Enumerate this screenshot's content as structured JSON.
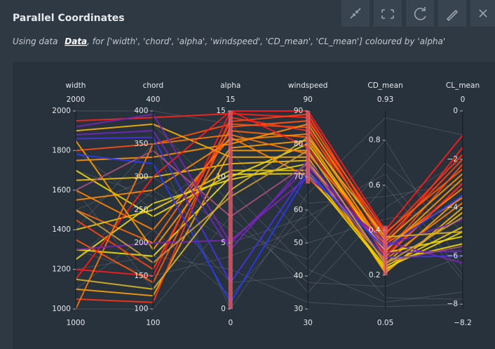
{
  "header": {
    "title": "Parallel Coordinates",
    "subtitle_prefix": "Using data",
    "subtitle_link": "Data",
    "subtitle_suffix": ", for ['width', 'chord', 'alpha', 'windspeed', 'CD_mean', 'CL_mean'] coloured by 'alpha'"
  },
  "chart_data": {
    "type": "parcoords",
    "color_dimension": 2,
    "colorscale": [
      [
        0,
        "#1e3cff"
      ],
      [
        0.4,
        "#8a20a8"
      ],
      [
        0.66,
        "#f0e000"
      ],
      [
        0.85,
        "#ff8c00"
      ],
      [
        1,
        "#ff1a1a"
      ]
    ],
    "filtered_color": "#6b7178",
    "dimensions": [
      {
        "label": "width",
        "range": [
          1000,
          2000
        ],
        "ticks": [
          1000,
          1200,
          1400,
          1600,
          1800,
          2000
        ]
      },
      {
        "label": "chord",
        "range": [
          100,
          400
        ],
        "ticks": [
          100,
          150,
          200,
          250,
          300,
          350,
          400
        ]
      },
      {
        "label": "alpha",
        "range": [
          0,
          15
        ],
        "ticks": [
          0,
          5,
          10,
          15
        ],
        "constraintrange": [
          0,
          15
        ]
      },
      {
        "label": "windspeed",
        "range": [
          30,
          90
        ],
        "ticks": [
          30,
          40,
          50,
          60,
          70,
          80,
          90
        ],
        "constraintrange": [
          68,
          90
        ]
      },
      {
        "label": "CD_mean",
        "range": [
          0.05,
          0.93
        ],
        "ticks": [
          0.2,
          0.4,
          0.6,
          0.8
        ],
        "constraintrange": [
          0.2,
          0.42
        ]
      },
      {
        "label": "CL_mean",
        "range": [
          {
            "value": -8.2,
            "label": "−8.2"
          },
          0
        ],
        "ticks": [
          0,
          {
            "value": -2,
            "label": "−2"
          },
          {
            "value": -4,
            "label": "−4"
          },
          {
            "value": -6,
            "label": "−6"
          },
          {
            "value": -8,
            "label": "−8"
          }
        ]
      }
    ],
    "lines": [
      [
        1950,
        390,
        14.8,
        88,
        0.33,
        -1.5
      ],
      [
        1800,
        350,
        14,
        85,
        0.3,
        -2.2
      ],
      [
        1500,
        200,
        13.5,
        82,
        0.28,
        -3.0
      ],
      [
        1200,
        150,
        15,
        90,
        0.4,
        -1.0
      ],
      [
        1100,
        120,
        12,
        78,
        0.25,
        -3.5
      ],
      [
        1650,
        300,
        11,
        75,
        0.22,
        -4.2
      ],
      [
        1400,
        250,
        10.5,
        72,
        0.24,
        -4.8
      ],
      [
        1300,
        180,
        10,
        80,
        0.3,
        -5.2
      ],
      [
        1750,
        330,
        12.5,
        86,
        0.35,
        -2.6
      ],
      [
        1050,
        110,
        14.5,
        84,
        0.38,
        -1.8
      ],
      [
        1600,
        220,
        13,
        70,
        0.27,
        -3.8
      ],
      [
        1900,
        380,
        11.5,
        76,
        0.21,
        -4.0
      ],
      [
        1250,
        260,
        9.8,
        74,
        0.26,
        -5.5
      ],
      [
        1450,
        160,
        14.2,
        89,
        0.36,
        -2.0
      ],
      [
        1550,
        280,
        12.8,
        83,
        0.32,
        -3.2
      ],
      [
        1350,
        140,
        13.8,
        87,
        0.39,
        -2.4
      ],
      [
        1700,
        240,
        10.2,
        71,
        0.23,
        -5.0
      ],
      [
        1150,
        300,
        15,
        79,
        0.29,
        -3.0
      ],
      [
        1850,
        190,
        12.2,
        81,
        0.31,
        -2.8
      ],
      [
        1000,
        350,
        13.2,
        77,
        0.34,
        -3.6
      ],
      [
        1920,
        395,
        5,
        73,
        0.33,
        -4.5
      ],
      [
        1880,
        370,
        4.5,
        75,
        0.3,
        -5.8
      ],
      [
        1300,
        200,
        5.2,
        70,
        0.35,
        -6.3
      ],
      [
        1860,
        360,
        2,
        72,
        0.28,
        -6.0
      ],
      [
        1780,
        320,
        0.5,
        71,
        0.32,
        -3.5
      ],
      [
        1600,
        340,
        7,
        74,
        0.26,
        -5.6
      ],
      [
        1500,
        170,
        8.5,
        78,
        0.25,
        -4.4
      ],
      [
        1150,
        130,
        9,
        82,
        0.37,
        -5.0
      ],
      [
        1700,
        270,
        2,
        40,
        0.6,
        -7
      ],
      [
        1300,
        150,
        4,
        55,
        0.8,
        -6.5
      ],
      [
        1900,
        380,
        8,
        35,
        0.5,
        -2
      ],
      [
        1100,
        220,
        1,
        60,
        0.1,
        -7.8
      ],
      [
        1500,
        300,
        6,
        45,
        0.7,
        -5
      ],
      [
        1200,
        180,
        3,
        32,
        0.06,
        -8
      ],
      [
        1800,
        250,
        12,
        50,
        0.45,
        -4
      ],
      [
        1400,
        350,
        0,
        65,
        0.9,
        -1
      ],
      [
        1000,
        100,
        7,
        38,
        0.15,
        -6
      ],
      [
        2000,
        400,
        14,
        62,
        0.55,
        -3
      ],
      [
        1600,
        130,
        9,
        42,
        0.08,
        -7.5
      ],
      [
        1250,
        280,
        5,
        58,
        0.65,
        -6.8
      ]
    ]
  }
}
